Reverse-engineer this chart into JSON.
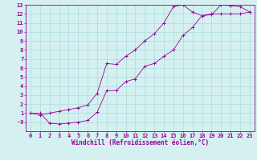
{
  "xlabel": "Windchill (Refroidissement éolien,°C)",
  "line1_x": [
    0,
    1,
    2,
    3,
    4,
    5,
    6,
    7,
    8,
    9,
    10,
    11,
    12,
    13,
    14,
    15,
    16,
    17,
    18,
    19,
    20,
    21,
    22,
    23
  ],
  "line1_y": [
    1.0,
    1.0,
    -0.1,
    -0.2,
    -0.1,
    0.0,
    0.2,
    1.1,
    3.5,
    3.5,
    4.5,
    4.8,
    6.2,
    6.5,
    7.3,
    8.0,
    9.6,
    10.5,
    11.8,
    11.9,
    13.0,
    12.9,
    12.8,
    12.2
  ],
  "line2_x": [
    0,
    1,
    2,
    3,
    4,
    5,
    6,
    7,
    8,
    9,
    10,
    11,
    12,
    13,
    14,
    15,
    16,
    17,
    18,
    19,
    20,
    21,
    22,
    23
  ],
  "line2_y": [
    1.0,
    0.8,
    1.0,
    1.2,
    1.4,
    1.6,
    1.9,
    3.2,
    6.5,
    6.4,
    7.3,
    8.0,
    9.0,
    9.8,
    11.0,
    12.8,
    13.0,
    12.2,
    11.8,
    12.0,
    12.0,
    12.0,
    12.0,
    12.2
  ],
  "color": "#990099",
  "bg_color": "#d5f0f0",
  "xlim": [
    -0.5,
    23.5
  ],
  "ylim": [
    -1,
    13
  ],
  "xticks": [
    0,
    1,
    2,
    3,
    4,
    5,
    6,
    7,
    8,
    9,
    10,
    11,
    12,
    13,
    14,
    15,
    16,
    17,
    18,
    19,
    20,
    21,
    22,
    23
  ],
  "yticks": [
    0,
    1,
    2,
    3,
    4,
    5,
    6,
    7,
    8,
    9,
    10,
    11,
    12,
    13
  ],
  "grid_color": "#aadddd",
  "xlabel_fontsize": 5.5,
  "tick_fontsize": 5.0
}
